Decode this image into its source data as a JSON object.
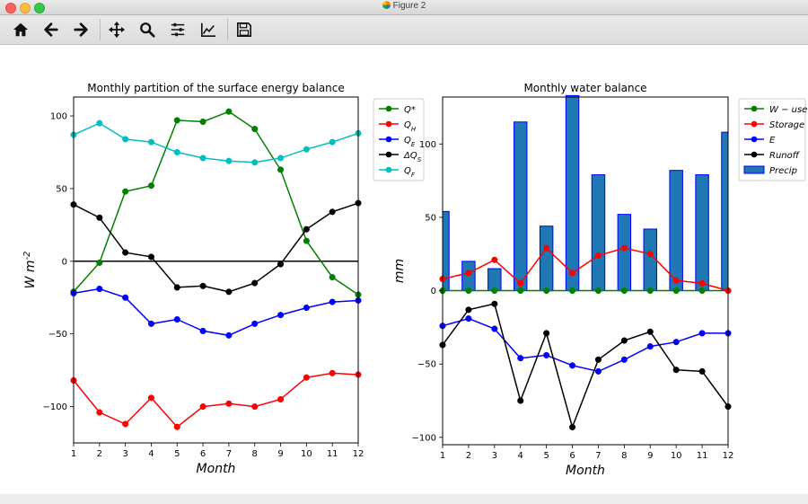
{
  "window": {
    "title": "Figure 2",
    "icon": "matplotlib-icon"
  },
  "toolbar": {
    "buttons": [
      {
        "name": "home-button",
        "icon": "home-icon"
      },
      {
        "name": "back-button",
        "icon": "arrow-left-icon"
      },
      {
        "name": "forward-button",
        "icon": "arrow-right-icon"
      },
      {
        "name": "pan-button",
        "icon": "move-icon"
      },
      {
        "name": "zoom-button",
        "icon": "magnifier-icon"
      },
      {
        "name": "subplots-button",
        "icon": "sliders-icon"
      },
      {
        "name": "edit-axes-button",
        "icon": "line-chart-icon"
      },
      {
        "name": "save-button",
        "icon": "floppy-disk-icon"
      }
    ]
  },
  "chart_data": [
    {
      "type": "line",
      "title": "Monthly  partition of the surface energy balance",
      "xlabel": "Month",
      "ylabel": "W m$^{-2}$",
      "xlim": [
        1,
        12
      ],
      "ylim": [
        -125,
        113
      ],
      "xticks": [
        1,
        2,
        3,
        4,
        5,
        6,
        7,
        8,
        9,
        10,
        11,
        12
      ],
      "yticks": [
        -100,
        -50,
        0,
        50,
        100
      ],
      "zero_line": true,
      "legend_position": "upper-right-outside",
      "x": [
        1,
        2,
        3,
        4,
        5,
        6,
        7,
        8,
        9,
        10,
        11,
        12
      ],
      "series": [
        {
          "name": "Q*",
          "color": "#008000",
          "values": [
            -21,
            -1,
            48,
            52,
            97,
            96,
            103,
            91,
            63,
            14,
            -11,
            -23
          ]
        },
        {
          "name": "Q_H",
          "color": "#ff0000",
          "values": [
            -82,
            -104,
            -112,
            -94,
            -114,
            -100,
            -98,
            -100,
            -95,
            -80,
            -77,
            -78
          ]
        },
        {
          "name": "Q_E",
          "color": "#0000ff",
          "values": [
            -22,
            -19,
            -25,
            -43,
            -40,
            -48,
            -51,
            -43,
            -37,
            -32,
            -28,
            -27
          ]
        },
        {
          "name": "ΔQ_S",
          "color": "#000000",
          "values": [
            39,
            30,
            6,
            3,
            -18,
            -17,
            -21,
            -15,
            -2,
            22,
            34,
            40
          ]
        },
        {
          "name": "Q_F",
          "color": "#00bfbf",
          "values": [
            87,
            95,
            84,
            82,
            75,
            71,
            69,
            68,
            71,
            77,
            82,
            88
          ]
        }
      ]
    },
    {
      "type": "bar+line",
      "title": "Monthly water balance",
      "xlabel": "Month",
      "ylabel": "mm",
      "xlim": [
        1,
        12
      ],
      "ylim": [
        -105,
        132
      ],
      "xticks": [
        1,
        2,
        3,
        4,
        5,
        6,
        7,
        8,
        9,
        10,
        11,
        12
      ],
      "yticks": [
        -100,
        -50,
        0,
        50,
        100
      ],
      "legend_position": "upper-right-outside",
      "x": [
        1,
        2,
        3,
        4,
        5,
        6,
        7,
        8,
        9,
        10,
        11,
        12
      ],
      "bars": {
        "name": "Precip",
        "color": "#1f77b4",
        "edge": "#0000ff",
        "values": [
          54,
          20,
          15,
          115,
          44,
          133,
          79,
          52,
          42,
          82,
          79,
          108
        ]
      },
      "series": [
        {
          "name": "W − use",
          "color": "#008000",
          "values": [
            0,
            0,
            0,
            0,
            0,
            0,
            0,
            0,
            0,
            0,
            0,
            0
          ]
        },
        {
          "name": "Storage",
          "color": "#ff0000",
          "values": [
            8,
            12,
            21,
            5,
            29,
            12,
            24,
            29,
            25,
            7,
            5,
            0
          ]
        },
        {
          "name": "E",
          "color": "#0000ff",
          "values": [
            -24,
            -19,
            -26,
            -46,
            -44,
            -51,
            -55,
            -47,
            -38,
            -35,
            -29,
            -29
          ]
        },
        {
          "name": "Runoff",
          "color": "#000000",
          "values": [
            -37,
            -13,
            -9,
            -75,
            -29,
            -93,
            -47,
            -34,
            -28,
            -54,
            -55,
            -79
          ]
        }
      ]
    }
  ]
}
